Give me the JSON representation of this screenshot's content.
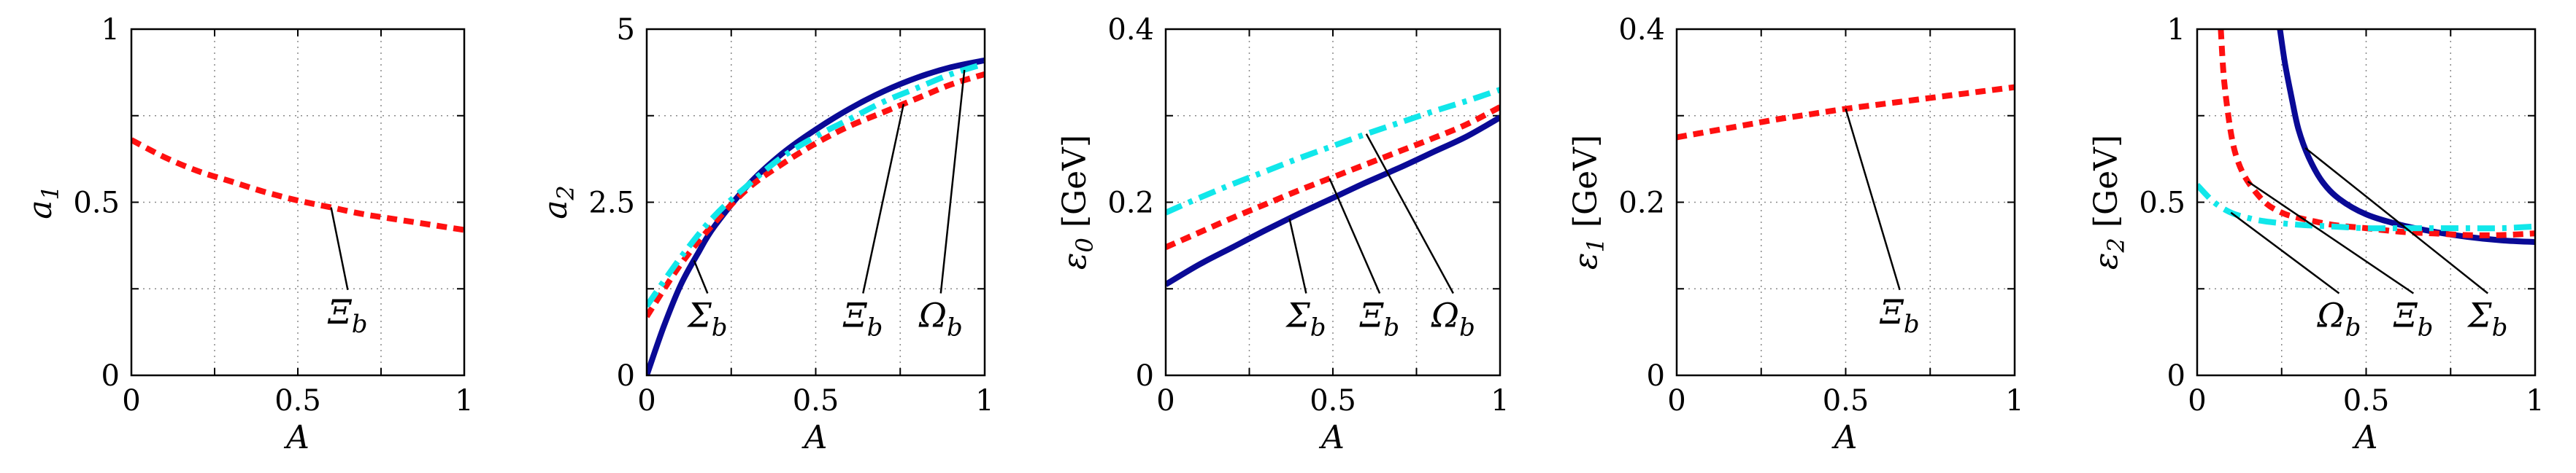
{
  "colors": {
    "Sigma_b": "#0a0a96",
    "Xi_b": "#ff1010",
    "Omega_b": "#11e7ea",
    "axes": "#000000",
    "grid": "#8a8a8a"
  },
  "chart_data": [
    {
      "type": "line",
      "xlabel": "A",
      "ylabel": "a_1",
      "xlim": [
        0,
        1
      ],
      "ylim": [
        0,
        1
      ],
      "xticks": [
        "0",
        "0.5",
        "1"
      ],
      "yticks": [
        "0",
        "0.5",
        "1"
      ],
      "grid": "dotted",
      "series": [
        {
          "name": "Ξ_b",
          "style": "dashed",
          "color_key": "Xi_b",
          "x": [
            0,
            0.1,
            0.2,
            0.3,
            0.4,
            0.5,
            0.6,
            0.7,
            0.8,
            0.9,
            1.0
          ],
          "y": [
            0.68,
            0.63,
            0.59,
            0.56,
            0.53,
            0.505,
            0.485,
            0.465,
            0.45,
            0.435,
            0.42
          ]
        }
      ],
      "annotations": [
        {
          "text": "Ξb",
          "series": "Ξ_b",
          "x": 0.6
        }
      ]
    },
    {
      "type": "line",
      "xlabel": "A",
      "ylabel": "a_2",
      "xlim": [
        0,
        1
      ],
      "ylim": [
        0,
        5
      ],
      "xticks": [
        "0",
        "0.5",
        "1"
      ],
      "yticks": [
        "0",
        "2.5",
        "5"
      ],
      "grid": "dotted",
      "series": [
        {
          "name": "Σ_b",
          "style": "solid",
          "color_key": "Sigma_b",
          "x": [
            0,
            0.05,
            0.1,
            0.15,
            0.2,
            0.3,
            0.4,
            0.5,
            0.6,
            0.7,
            0.8,
            0.9,
            1.0
          ],
          "y": [
            0,
            0.7,
            1.3,
            1.75,
            2.15,
            2.75,
            3.2,
            3.55,
            3.85,
            4.1,
            4.3,
            4.45,
            4.55
          ]
        },
        {
          "name": "Ξ_b",
          "style": "dashed",
          "color_key": "Xi_b",
          "x": [
            0,
            0.1,
            0.2,
            0.3,
            0.4,
            0.5,
            0.6,
            0.7,
            0.8,
            0.9,
            1.0
          ],
          "y": [
            0.85,
            1.6,
            2.2,
            2.7,
            3.05,
            3.35,
            3.6,
            3.8,
            4.0,
            4.2,
            4.35
          ]
        },
        {
          "name": "Ω_b",
          "style": "dashdot",
          "color_key": "Omega_b",
          "x": [
            0,
            0.1,
            0.2,
            0.3,
            0.4,
            0.5,
            0.6,
            0.7,
            0.8,
            0.9,
            1.0
          ],
          "y": [
            1.0,
            1.7,
            2.3,
            2.75,
            3.15,
            3.45,
            3.7,
            3.95,
            4.15,
            4.35,
            4.5
          ]
        }
      ],
      "annotations": [
        {
          "text": "Σb",
          "series": "Σ_b",
          "x": 0.14
        },
        {
          "text": "Ξb",
          "series": "Ξ_b",
          "x": 0.76
        },
        {
          "text": "Ωb",
          "series": "Ω_b",
          "x": 0.94
        }
      ]
    },
    {
      "type": "line",
      "xlabel": "A",
      "ylabel": "ε_0 [GeV]",
      "xlim": [
        0,
        1
      ],
      "ylim": [
        0,
        0.4
      ],
      "xticks": [
        "0",
        "0.5",
        "1"
      ],
      "yticks": [
        "0",
        "0.2",
        "0.4"
      ],
      "grid": "dotted",
      "series": [
        {
          "name": "Σ_b",
          "style": "solid",
          "color_key": "Sigma_b",
          "x": [
            0,
            0.1,
            0.2,
            0.3,
            0.4,
            0.5,
            0.6,
            0.7,
            0.8,
            0.9,
            1.0
          ],
          "y": [
            0.105,
            0.128,
            0.148,
            0.168,
            0.187,
            0.205,
            0.223,
            0.24,
            0.258,
            0.276,
            0.298
          ]
        },
        {
          "name": "Ξ_b",
          "style": "dashed",
          "color_key": "Xi_b",
          "x": [
            0,
            0.1,
            0.2,
            0.3,
            0.4,
            0.5,
            0.6,
            0.7,
            0.8,
            0.9,
            1.0
          ],
          "y": [
            0.148,
            0.165,
            0.182,
            0.198,
            0.214,
            0.229,
            0.244,
            0.259,
            0.274,
            0.29,
            0.31
          ]
        },
        {
          "name": "Ω_b",
          "style": "dashdot",
          "color_key": "Omega_b",
          "x": [
            0,
            0.1,
            0.2,
            0.3,
            0.4,
            0.5,
            0.6,
            0.7,
            0.8,
            0.9,
            1.0
          ],
          "y": [
            0.188,
            0.205,
            0.221,
            0.236,
            0.251,
            0.265,
            0.279,
            0.292,
            0.305,
            0.317,
            0.33
          ]
        }
      ],
      "annotations": [
        {
          "text": "Σb",
          "series": "Σ_b",
          "x": 0.37
        },
        {
          "text": "Ξb",
          "series": "Ξ_b",
          "x": 0.49
        },
        {
          "text": "Ωb",
          "series": "Ω_b",
          "x": 0.6
        }
      ]
    },
    {
      "type": "line",
      "xlabel": "A",
      "ylabel": "ε_1 [GeV]",
      "xlim": [
        0,
        1
      ],
      "ylim": [
        0,
        0.4
      ],
      "xticks": [
        "0",
        "0.5",
        "1"
      ],
      "yticks": [
        "0",
        "0.2",
        "0.4"
      ],
      "grid": "dotted",
      "series": [
        {
          "name": "Ξ_b",
          "style": "dashed",
          "color_key": "Xi_b",
          "x": [
            0,
            0.1,
            0.2,
            0.3,
            0.4,
            0.5,
            0.6,
            0.7,
            0.8,
            0.9,
            1.0
          ],
          "y": [
            0.275,
            0.282,
            0.289,
            0.296,
            0.302,
            0.308,
            0.313,
            0.318,
            0.323,
            0.328,
            0.333
          ]
        }
      ],
      "annotations": [
        {
          "text": "Ξb",
          "series": "Ξ_b",
          "x": 0.5
        }
      ]
    },
    {
      "type": "line",
      "xlabel": "A",
      "ylabel": "ε_2 [GeV]",
      "xlim": [
        0,
        1
      ],
      "ylim": [
        0,
        1
      ],
      "xticks": [
        "0",
        "0.5",
        "1"
      ],
      "yticks": [
        "0",
        "0.5",
        "1"
      ],
      "grid": "dotted",
      "series": [
        {
          "name": "Σ_b",
          "style": "solid",
          "color_key": "Sigma_b",
          "x": [
            0.245,
            0.26,
            0.28,
            0.3,
            0.33,
            0.37,
            0.42,
            0.5,
            0.6,
            0.7,
            0.8,
            0.9,
            1.0
          ],
          "y": [
            1.0,
            0.9,
            0.8,
            0.71,
            0.63,
            0.56,
            0.51,
            0.465,
            0.435,
            0.415,
            0.4,
            0.39,
            0.385
          ]
        },
        {
          "name": "Ξ_b",
          "style": "dashed",
          "color_key": "Xi_b",
          "x": [
            0.07,
            0.08,
            0.1,
            0.12,
            0.15,
            0.2,
            0.25,
            0.3,
            0.4,
            0.5,
            0.6,
            0.7,
            0.8,
            0.9,
            1.0
          ],
          "y": [
            1.0,
            0.85,
            0.7,
            0.62,
            0.56,
            0.5,
            0.47,
            0.455,
            0.435,
            0.425,
            0.415,
            0.41,
            0.405,
            0.405,
            0.41
          ]
        },
        {
          "name": "Ω_b",
          "style": "dashdot",
          "color_key": "Omega_b",
          "x": [
            0,
            0.05,
            0.1,
            0.15,
            0.2,
            0.3,
            0.4,
            0.5,
            0.6,
            0.7,
            0.8,
            0.9,
            1.0
          ],
          "y": [
            0.55,
            0.5,
            0.47,
            0.455,
            0.445,
            0.435,
            0.43,
            0.425,
            0.425,
            0.425,
            0.425,
            0.425,
            0.43
          ]
        }
      ],
      "annotations": [
        {
          "text": "Ωb",
          "series": "Ω_b",
          "x": 0.1
        },
        {
          "text": "Ξb",
          "series": "Ξ_b",
          "x": 0.15
        },
        {
          "text": "Σb",
          "series": "Σ_b",
          "x": 0.32
        }
      ]
    }
  ]
}
